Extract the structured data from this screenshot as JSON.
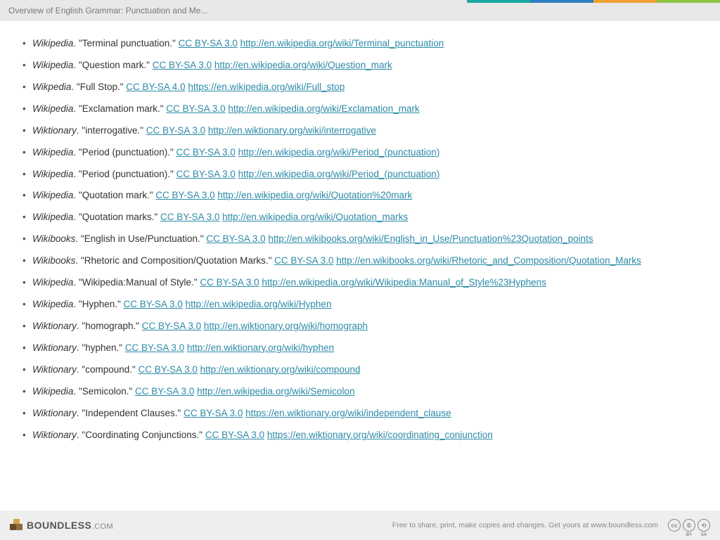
{
  "header": {
    "title": "Overview of English Grammar: Punctuation and Me...",
    "strip_colors": [
      "#1ba8a0",
      "#2e7fc1",
      "#f0a030",
      "#8bc540"
    ]
  },
  "references": [
    {
      "source": "Wikipedia",
      "title": "Terminal punctuation.",
      "license": "CC BY-SA 3.0",
      "url": "http://en.wikipedia.org/wiki/Terminal_punctuation"
    },
    {
      "source": "Wikipedia",
      "title": "Question mark.",
      "license": "CC BY-SA 3.0",
      "url": "http://en.wikipedia.org/wiki/Question_mark"
    },
    {
      "source": "Wikpedia",
      "title": "Full Stop.",
      "license": "CC BY-SA 4.0",
      "url": "https://en.wikipedia.org/wiki/Full_stop"
    },
    {
      "source": "Wikipedia",
      "title": "Exclamation mark.",
      "license": "CC BY-SA 3.0",
      "url": "http://en.wikipedia.org/wiki/Exclamation_mark"
    },
    {
      "source": "Wiktionary",
      "title": "interrogative.",
      "license": "CC BY-SA 3.0",
      "url": "http://en.wiktionary.org/wiki/interrogative"
    },
    {
      "source": "Wikipedia",
      "title": "Period (punctuation).",
      "license": "CC BY-SA 3.0",
      "url": "http://en.wikipedia.org/wiki/Period_(punctuation)"
    },
    {
      "source": "Wikipedia",
      "title": "Period (punctuation).",
      "license": "CC BY-SA 3.0",
      "url": "http://en.wikipedia.org/wiki/Period_(punctuation)"
    },
    {
      "source": "Wikipedia",
      "title": "Quotation mark.",
      "license": "CC BY-SA 3.0",
      "url": "http://en.wikipedia.org/wiki/Quotation%20mark"
    },
    {
      "source": "Wikipedia",
      "title": "Quotation marks.",
      "license": "CC BY-SA 3.0",
      "url": "http://en.wikipedia.org/wiki/Quotation_marks"
    },
    {
      "source": "Wikibooks",
      "title": "English in Use/Punctuation.",
      "license": "CC BY-SA 3.0",
      "url": "http://en.wikibooks.org/wiki/English_in_Use/Punctuation%23Quotation_points"
    },
    {
      "source": "Wikibooks",
      "title": "Rhetoric and Composition/Quotation Marks.",
      "license": "CC BY-SA 3.0",
      "url": "http://en.wikibooks.org/wiki/Rhetoric_and_Composition/Quotation_Marks"
    },
    {
      "source": "Wikipedia",
      "title": "Wikipedia:Manual of Style.",
      "license": "CC BY-SA 3.0",
      "url": "http://en.wikipedia.org/wiki/Wikipedia:Manual_of_Style%23Hyphens"
    },
    {
      "source": "Wikipedia",
      "title": "Hyphen.",
      "license": "CC BY-SA 3.0",
      "url": "http://en.wikipedia.org/wiki/Hyphen"
    },
    {
      "source": "Wiktionary",
      "title": "homograph.",
      "license": "CC BY-SA 3.0",
      "url": "http://en.wiktionary.org/wiki/homograph"
    },
    {
      "source": "Wiktionary",
      "title": "hyphen.",
      "license": "CC BY-SA 3.0",
      "url": "http://en.wiktionary.org/wiki/hyphen"
    },
    {
      "source": "Wiktionary",
      "title": "compound.",
      "license": "CC BY-SA 3.0",
      "url": "http://en.wiktionary.org/wiki/compound"
    },
    {
      "source": "Wikipedia",
      "title": "Semicolon.",
      "license": "CC BY-SA 3.0",
      "url": "http://en.wikipedia.org/wiki/Semicolon"
    },
    {
      "source": "Wiktionary",
      "title": "Independent Clauses.",
      "license": "CC BY-SA 3.0",
      "url": "https://en.wiktionary.org/wiki/independent_clause"
    },
    {
      "source": "Wiktionary",
      "title": "Coordinating Conjunctions.",
      "license": "CC BY-SA 3.0",
      "url": "https://en.wiktionary.org/wiki/coordinating_conjunction"
    }
  ],
  "footer": {
    "brand_name": "BOUNDLESS",
    "brand_domain": ".COM",
    "message": "Free to share, print, make copies and changes. Get yours at www.boundless.com",
    "cc_labels": [
      "cc",
      "BY",
      "SA"
    ]
  },
  "colors": {
    "link": "#2c8aa8",
    "text": "#333333",
    "header_bg": "#e8e8e8",
    "footer_bg": "#eeeeee"
  }
}
